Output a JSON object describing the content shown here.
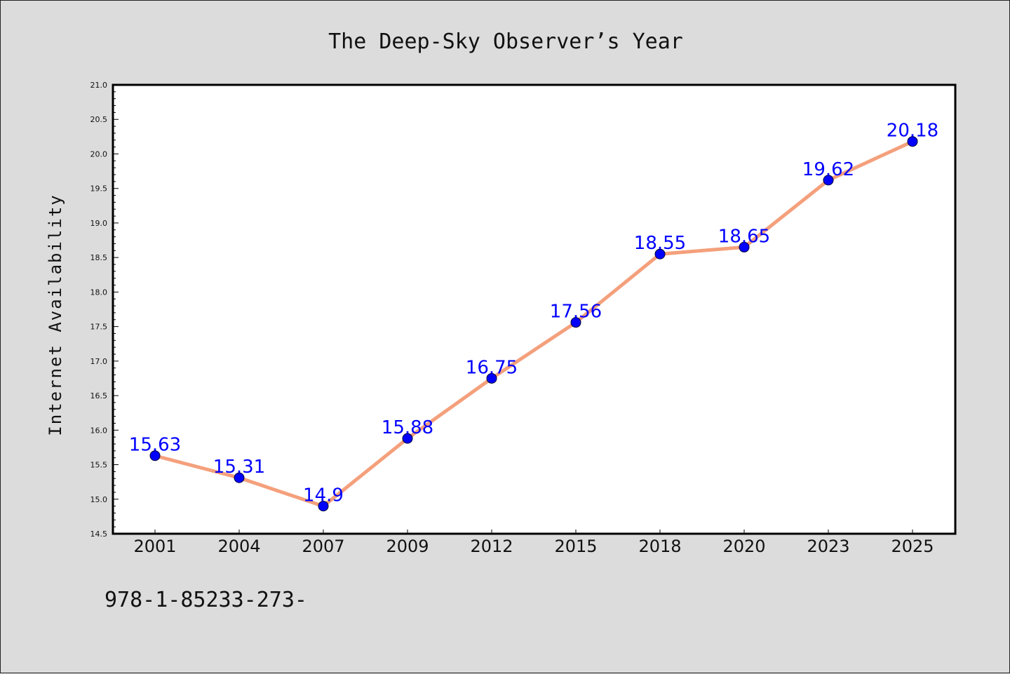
{
  "chart_data": {
    "type": "line",
    "title": "The Deep-Sky Observer’s Year",
    "xlabel": "",
    "ylabel": "Internet Availability",
    "categories": [
      "2001",
      "2004",
      "2007",
      "2009",
      "2012",
      "2015",
      "2018",
      "2020",
      "2023",
      "2025"
    ],
    "series": [
      {
        "values": [
          15.63,
          15.31,
          14.9,
          15.88,
          16.75,
          17.56,
          18.55,
          18.65,
          19.62,
          20.18
        ]
      }
    ],
    "data_labels": [
      "15.63",
      "15.31",
      "14.9",
      "15.88",
      "16.75",
      "17.56",
      "18.55",
      "18.65",
      "19.62",
      "20.18"
    ],
    "ylim": [
      14.5,
      21.0
    ],
    "yticks": [
      "14.5",
      "15.0",
      "15.5",
      "16.0",
      "16.5",
      "17.0",
      "17.5",
      "18.0",
      "18.5",
      "19.0",
      "19.5",
      "20.0",
      "20.5",
      "21.0"
    ],
    "grid": false,
    "legend": "none",
    "colors": {
      "line": "#f4a07c",
      "marker": "#0000ff",
      "data_label": "#0000ff",
      "plot_background": "#ffffff",
      "figure_background": "#dcdcdc"
    }
  },
  "footer_text": "978-1-85233-273-"
}
